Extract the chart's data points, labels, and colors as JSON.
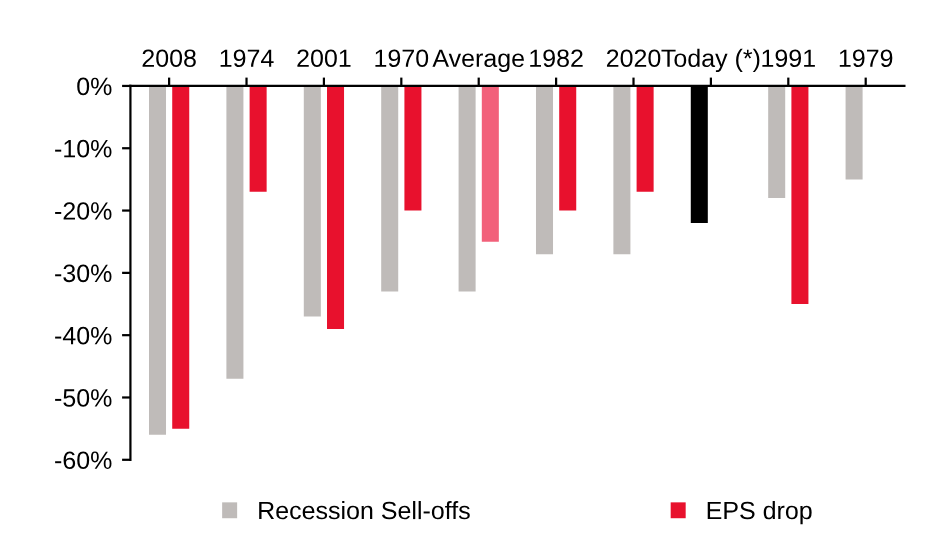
{
  "chart_data": {
    "type": "bar",
    "categories": [
      "2008",
      "1974",
      "2001",
      "1970",
      "Average",
      "1982",
      "2020",
      "Today (*)",
      "1991",
      "1979"
    ],
    "series": [
      {
        "name": "Recession Sell-offs",
        "color": "#bfbbb9",
        "colors": [
          "#bfbbb9",
          "#bfbbb9",
          "#bfbbb9",
          "#bfbbb9",
          "#bfbbb9",
          "#bfbbb9",
          "#bfbbb9",
          "#000000",
          "#bfbbb9",
          "#bfbbb9"
        ],
        "values": [
          -56,
          -47,
          -37,
          -33,
          -33,
          -27,
          -27,
          -22,
          -18,
          -15
        ]
      },
      {
        "name": "EPS drop",
        "color": "#e8112d",
        "colors": [
          "#e8112d",
          "#e8112d",
          "#e8112d",
          "#e8112d",
          "#f2607a",
          "#e8112d",
          "#e8112d",
          "#e8112d",
          "#e8112d",
          "#e8112d"
        ],
        "values": [
          -55,
          -17,
          -39,
          -20,
          -25,
          -20,
          -17,
          null,
          -35,
          null
        ]
      }
    ],
    "ylim": [
      -60,
      0
    ],
    "yticks": [
      {
        "value": 0,
        "label": "0%"
      },
      {
        "value": -10,
        "label": "-10%"
      },
      {
        "value": -20,
        "label": "-20%"
      },
      {
        "value": -30,
        "label": "-30%"
      },
      {
        "value": -40,
        "label": "-40%"
      },
      {
        "value": -50,
        "label": "-50%"
      },
      {
        "value": -60,
        "label": "-60%"
      }
    ],
    "grid": false,
    "legend": "bottom"
  }
}
